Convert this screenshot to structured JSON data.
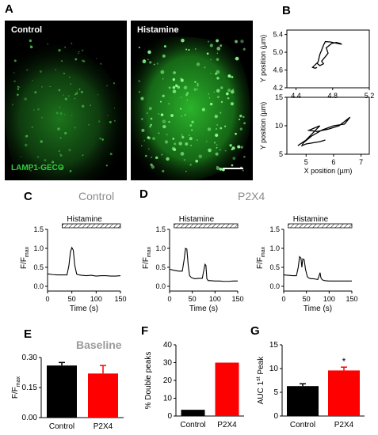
{
  "panels": {
    "A": "A",
    "B": "B",
    "C": "C",
    "D": "D",
    "E": "E",
    "F": "F",
    "G": "G"
  },
  "images": {
    "left_caption": "Control",
    "right_caption": "Histamine",
    "marker": "LAMP1-GECO",
    "fluor_color": "#2fd03a"
  },
  "headers": {
    "control": "Control",
    "p2x4": "P2X4",
    "baseline": "Baseline"
  },
  "colors": {
    "control": "#000000",
    "p2x4": "#ff0000",
    "neutral": "#8c8c8c"
  },
  "chart_data": [
    {
      "id": "B-top",
      "type": "line",
      "xlabel": "",
      "ylabel": "Y position (µm)",
      "xlim": [
        4.3,
        5.2
      ],
      "ylim": [
        4.2,
        5.5
      ],
      "xticks": [
        "4.4",
        "4.8",
        "5.2"
      ],
      "yticks": [
        "4.2",
        "4.6",
        "5.0",
        "5.4"
      ],
      "x": [
        4.63,
        4.66,
        4.7,
        4.68,
        4.72,
        4.75,
        4.73,
        4.79,
        4.84,
        4.88,
        4.9,
        4.85,
        4.78,
        4.72,
        4.7,
        4.68,
        4.66,
        4.65,
        4.64,
        4.62,
        4.6,
        4.58,
        4.61,
        4.63
      ],
      "y": [
        4.75,
        4.7,
        4.74,
        4.8,
        4.9,
        4.98,
        5.1,
        5.2,
        5.22,
        5.2,
        5.18,
        5.2,
        5.23,
        5.24,
        5.16,
        5.05,
        4.95,
        4.86,
        4.78,
        4.74,
        4.7,
        4.66,
        4.64,
        4.66
      ]
    },
    {
      "id": "B-bottom",
      "type": "line",
      "xlabel": "X position (µm)",
      "ylabel": "Y position (µm)",
      "xlim": [
        4.3,
        7.3
      ],
      "ylim": [
        5,
        15
      ],
      "xticks": [
        "5",
        "6",
        "7"
      ],
      "yticks": [
        "5",
        "10",
        "15"
      ],
      "x": [
        4.7,
        5.0,
        5.2,
        5.4,
        5.5,
        5.3,
        5.1,
        5.4,
        5.8,
        6.2,
        6.6,
        6.4,
        6.0,
        5.6,
        5.2,
        4.9,
        4.85,
        5.0,
        5.5,
        5.7
      ],
      "y": [
        6.5,
        7.5,
        8.5,
        9.5,
        10.0,
        9.6,
        9.2,
        9.0,
        9.4,
        10.0,
        11.5,
        10.3,
        10.0,
        9.3,
        8.2,
        7.0,
        6.5,
        6.8,
        7.2,
        7.5
      ]
    },
    {
      "id": "C",
      "type": "line",
      "title": "Histamine",
      "xlabel": "Time (s)",
      "ylabel": "F/F",
      "ylabel_sub": "max",
      "xlim": [
        0,
        150
      ],
      "ylim": [
        0,
        1.5
      ],
      "xticks": [
        "0",
        "50",
        "100",
        "150"
      ],
      "yticks": [
        "0.0",
        "0.5",
        "1.0",
        "1.5"
      ],
      "stimulus": [
        30,
        150
      ],
      "x": [
        0,
        10,
        20,
        30,
        40,
        44,
        47,
        50,
        53,
        56,
        60,
        65,
        70,
        80,
        90,
        100,
        110,
        120,
        130,
        140,
        150
      ],
      "y": [
        0.33,
        0.31,
        0.3,
        0.3,
        0.3,
        0.55,
        0.9,
        1.02,
        0.95,
        0.55,
        0.32,
        0.3,
        0.29,
        0.28,
        0.29,
        0.27,
        0.28,
        0.28,
        0.27,
        0.27,
        0.28
      ]
    },
    {
      "id": "D-left",
      "type": "line",
      "title": "Histamine",
      "xlabel": "Time (s)",
      "ylabel": "F/F",
      "ylabel_sub": "max",
      "xlim": [
        0,
        150
      ],
      "ylim": [
        0,
        1.5
      ],
      "xticks": [
        "0",
        "50",
        "100",
        "150"
      ],
      "yticks": [
        "0.0",
        "0.5",
        "1.0",
        "1.5"
      ],
      "stimulus": [
        10,
        150
      ],
      "x": [
        0,
        10,
        20,
        28,
        32,
        35,
        38,
        41,
        44,
        48,
        55,
        65,
        72,
        75,
        78,
        80,
        82,
        85,
        90,
        100,
        110,
        120,
        130,
        140,
        150
      ],
      "y": [
        0.45,
        0.42,
        0.4,
        0.4,
        0.7,
        1.0,
        0.98,
        0.55,
        0.28,
        0.23,
        0.2,
        0.21,
        0.21,
        0.4,
        0.58,
        0.55,
        0.2,
        0.15,
        0.15,
        0.14,
        0.14,
        0.13,
        0.13,
        0.14,
        0.14
      ]
    },
    {
      "id": "D-right",
      "type": "line",
      "title": "Histamine",
      "xlabel": "Time (s)",
      "ylabel": "F/F",
      "ylabel_sub": "max",
      "xlim": [
        0,
        150
      ],
      "ylim": [
        0,
        1.5
      ],
      "xticks": [
        "0",
        "50",
        "100",
        "150"
      ],
      "yticks": [
        "0.0",
        "0.5",
        "1.0",
        "1.5"
      ],
      "stimulus": [
        10,
        150
      ],
      "x": [
        0,
        10,
        20,
        28,
        32,
        35,
        38,
        40,
        42,
        45,
        48,
        52,
        55,
        60,
        65,
        70,
        75,
        78,
        80,
        82,
        85,
        90,
        100,
        110,
        120,
        130,
        140,
        150
      ],
      "y": [
        0.3,
        0.29,
        0.28,
        0.28,
        0.5,
        0.78,
        0.74,
        0.5,
        0.72,
        0.7,
        0.45,
        0.25,
        0.22,
        0.2,
        0.2,
        0.19,
        0.18,
        0.28,
        0.36,
        0.22,
        0.17,
        0.15,
        0.14,
        0.14,
        0.14,
        0.14,
        0.14,
        0.14
      ]
    },
    {
      "id": "E",
      "type": "bar",
      "title": "Baseline",
      "xlabel": "",
      "ylabel": "F/F",
      "ylabel_sub": "max",
      "categories": [
        "Control",
        "P2X4"
      ],
      "values": [
        0.26,
        0.22
      ],
      "errors": [
        0.015,
        0.04
      ],
      "ylim": [
        0,
        0.3
      ],
      "yticks": [
        "0.00",
        "0.15",
        "0.30"
      ]
    },
    {
      "id": "F",
      "type": "bar",
      "xlabel": "",
      "ylabel": "% Double peaks",
      "categories": [
        "Control",
        "P2X4"
      ],
      "values": [
        3.5,
        30
      ],
      "errors": [
        0,
        0
      ],
      "ylim": [
        0,
        40
      ],
      "yticks": [
        "0",
        "10",
        "20",
        "30",
        "40"
      ]
    },
    {
      "id": "G",
      "type": "bar",
      "xlabel": "",
      "ylabel": "AUC 1",
      "ylabel_sup": "st",
      "ylabel_tail": " Peak",
      "categories": [
        "Control",
        "P2X4"
      ],
      "values": [
        6.3,
        9.6
      ],
      "errors": [
        0.5,
        0.7
      ],
      "significance": "*",
      "ylim": [
        0,
        15
      ],
      "yticks": [
        "0",
        "5",
        "10",
        "15"
      ]
    }
  ]
}
